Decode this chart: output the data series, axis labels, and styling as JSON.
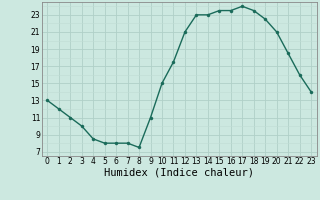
{
  "x": [
    0,
    1,
    2,
    3,
    4,
    5,
    6,
    7,
    8,
    9,
    10,
    11,
    12,
    13,
    14,
    15,
    16,
    17,
    18,
    19,
    20,
    21,
    22,
    23
  ],
  "y": [
    13,
    12,
    11,
    10,
    8.5,
    8.0,
    8.0,
    8.0,
    7.5,
    11,
    15,
    17.5,
    21,
    23,
    23,
    23.5,
    23.5,
    24,
    23.5,
    22.5,
    21,
    18.5,
    16,
    14
  ],
  "line_color": "#1a6b5a",
  "marker_color": "#1a6b5a",
  "bg_color": "#cce8e0",
  "grid_major_color": "#b0d0c8",
  "grid_minor_color": "#c0dcd4",
  "xlabel": "Humidex (Indice chaleur)",
  "xlabel_fontsize": 7.5,
  "xlim": [
    -0.5,
    23.5
  ],
  "ylim": [
    6.5,
    24.5
  ],
  "yticks": [
    7,
    9,
    11,
    13,
    15,
    17,
    19,
    21,
    23
  ],
  "xticks": [
    0,
    1,
    2,
    3,
    4,
    5,
    6,
    7,
    8,
    9,
    10,
    11,
    12,
    13,
    14,
    15,
    16,
    17,
    18,
    19,
    20,
    21,
    22,
    23
  ],
  "tick_fontsize": 5.5,
  "line_width": 1.0,
  "marker_size": 2.2
}
